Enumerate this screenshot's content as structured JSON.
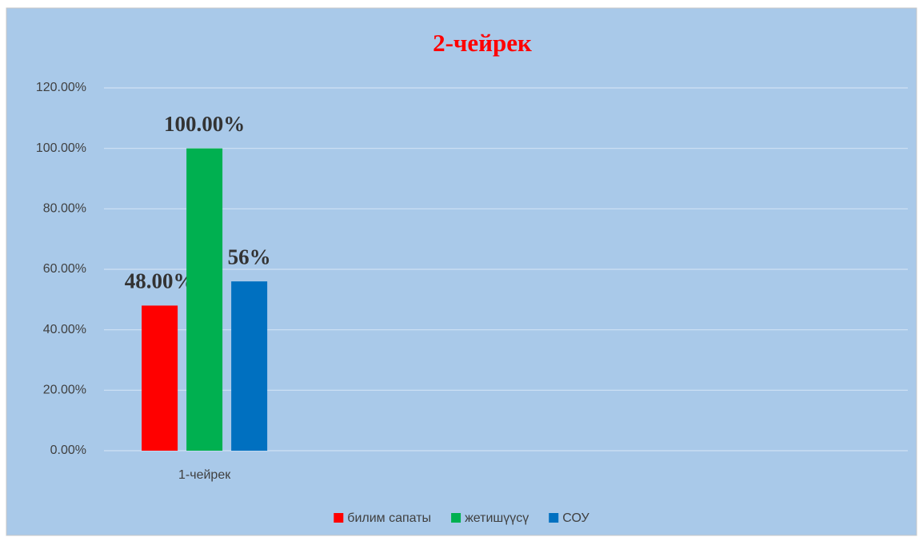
{
  "chart_data": {
    "type": "bar",
    "title": "2-чейрек",
    "categories": [
      "1-чейрек",
      null,
      null,
      null
    ],
    "series": [
      {
        "name": "билим сапаты",
        "color": "#ff0000",
        "values": [
          48,
          null,
          null,
          null
        ],
        "value_labels": [
          "48.00%",
          null,
          null,
          null
        ]
      },
      {
        "name": "жетишүүсү",
        "color": "#00b050",
        "values": [
          100,
          null,
          null,
          null
        ],
        "value_labels": [
          "100.00%",
          null,
          null,
          null
        ]
      },
      {
        "name": "СОУ",
        "color": "#0070c0",
        "values": [
          56,
          null,
          null,
          null
        ],
        "value_labels": [
          "56%",
          null,
          null,
          null
        ]
      }
    ],
    "ylim": [
      0,
      120
    ],
    "yticks": [
      {
        "value": 0,
        "label": "0.00%"
      },
      {
        "value": 20,
        "label": "20.00%"
      },
      {
        "value": 40,
        "label": "40.00%"
      },
      {
        "value": 60,
        "label": "60.00%"
      },
      {
        "value": 80,
        "label": "80.00%"
      },
      {
        "value": 100,
        "label": "100.00%"
      },
      {
        "value": 120,
        "label": "120.00%"
      }
    ],
    "grid": true,
    "legend": "bottom"
  }
}
